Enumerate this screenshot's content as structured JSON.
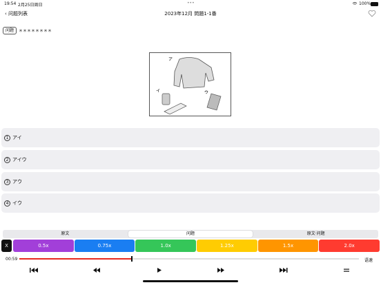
{
  "status_bar": {
    "time": "19:54",
    "date": "2月25日周日",
    "dots": "•••",
    "battery": "100%"
  },
  "nav": {
    "back": "问题列表",
    "title": "2023年12月 問題1-1番"
  },
  "question": {
    "tag": "问题",
    "masked": "＊＊＊＊＊＊＊＊"
  },
  "image": {
    "labels": [
      "ア",
      "イ",
      "ウ"
    ]
  },
  "options": [
    {
      "num": "1",
      "text": "アイ"
    },
    {
      "num": "2",
      "text": "アイウ"
    },
    {
      "num": "3",
      "text": "アウ"
    },
    {
      "num": "4",
      "text": "イウ"
    }
  ],
  "tabs": [
    "原文",
    "问题",
    "原文·问题"
  ],
  "close": "X",
  "speeds": [
    "0.5x",
    "0.75x",
    "1.0x",
    "1.25x",
    "1.5x",
    "2.0x"
  ],
  "player": {
    "time": "00:59",
    "speed_label": "语速"
  }
}
